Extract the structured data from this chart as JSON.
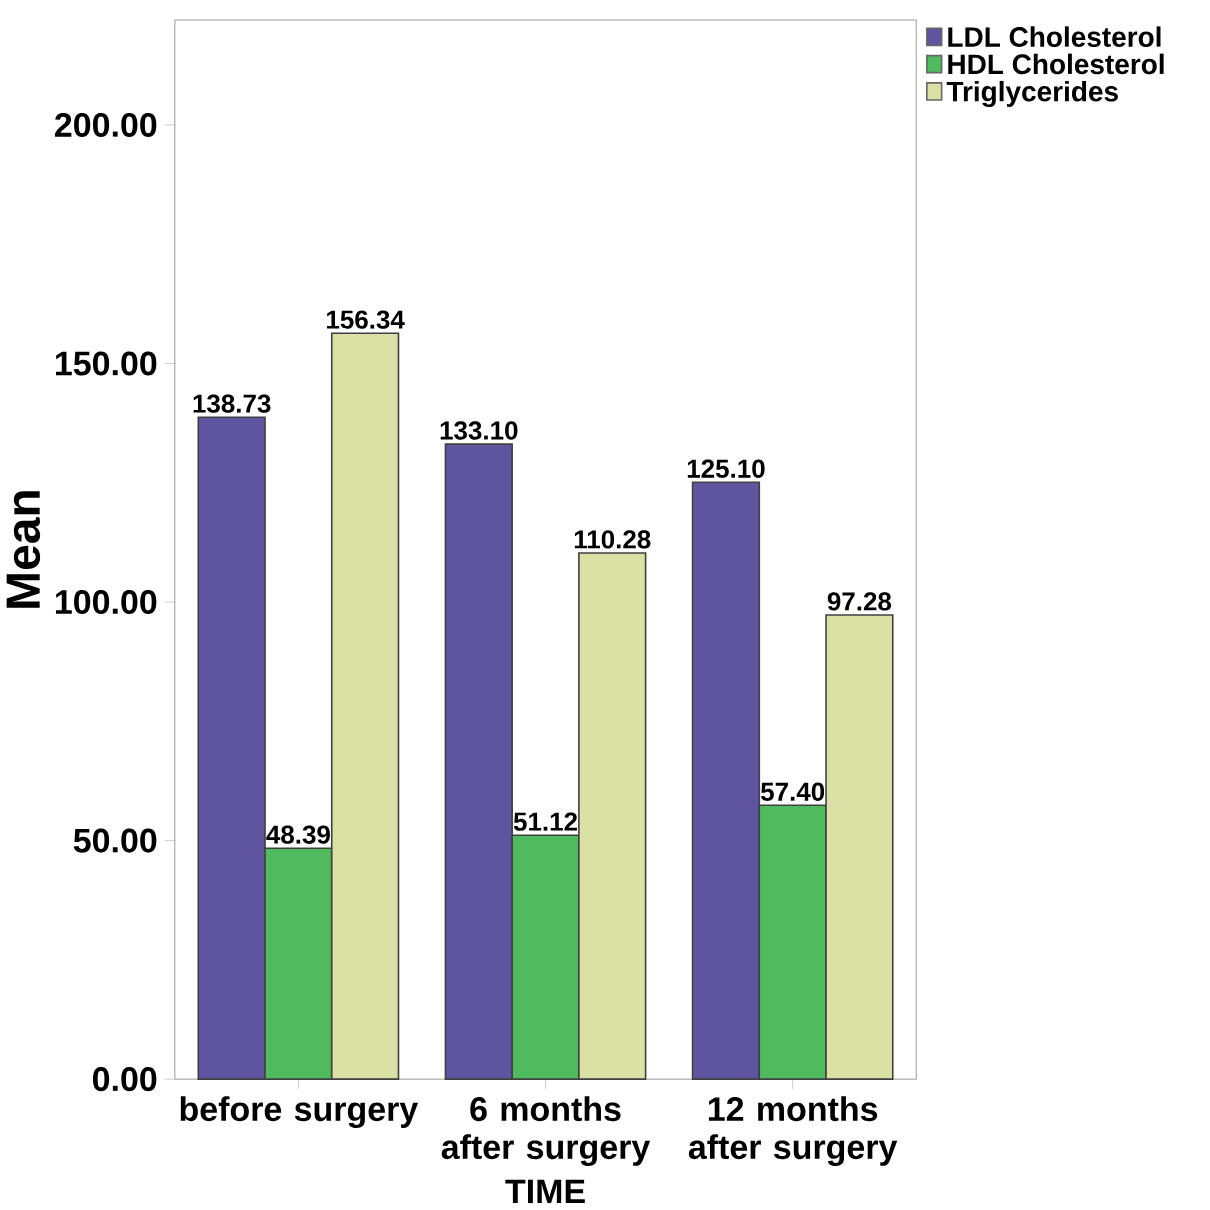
{
  "chart_data": {
    "type": "bar",
    "xlabel": "TIME",
    "ylabel": "Mean",
    "categories": [
      "before surgery",
      "6 months after surgery",
      "12 months after surgery"
    ],
    "series": [
      {
        "name": "LDL Cholesterol",
        "color": "#5e54a0",
        "values": [
          138.73,
          133.1,
          125.1
        ],
        "value_labels": [
          "138.73",
          "133.10",
          "125.10"
        ]
      },
      {
        "name": "HDL Cholesterol",
        "color": "#4fbb5e",
        "values": [
          48.39,
          51.12,
          57.4
        ],
        "value_labels": [
          "48.39",
          "51.12",
          "57.40"
        ]
      },
      {
        "name": "Triglycerides",
        "color": "#dbe0a4",
        "values": [
          156.34,
          110.28,
          97.28
        ],
        "value_labels": [
          "156.34",
          "110.28",
          "97.28"
        ]
      }
    ],
    "ylim": [
      0,
      222
    ],
    "yticks": [
      {
        "value": 0,
        "label": "0.00"
      },
      {
        "value": 50,
        "label": "50.00"
      },
      {
        "value": 100,
        "label": "100.00"
      },
      {
        "value": 150,
        "label": "150.00"
      },
      {
        "value": 200,
        "label": "200.00"
      }
    ],
    "legend": "top right"
  }
}
